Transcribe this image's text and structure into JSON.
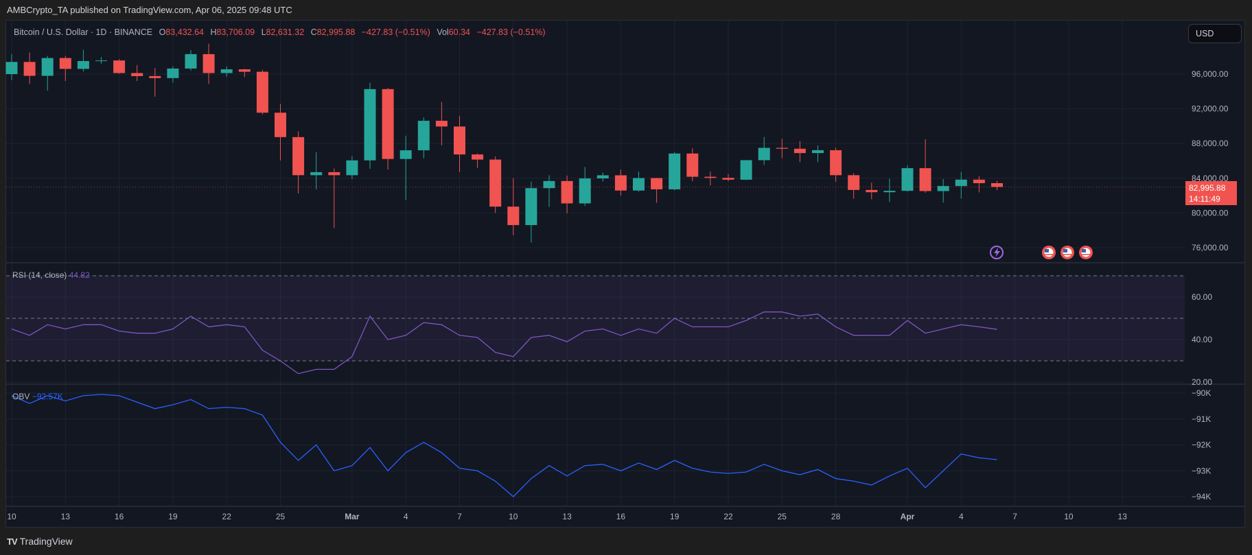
{
  "header": {
    "published": "AMBCrypto_TA published on TradingView.com, Apr 06, 2025 09:48 UTC"
  },
  "legend": {
    "symbol": "Bitcoin / U.S. Dollar · 1D · BINANCE",
    "o_label": "O",
    "o": "83,432.64",
    "h_label": "H",
    "h": "83,706.09",
    "l_label": "L",
    "l": "82,631.32",
    "c_label": "C",
    "c": "82,995.88",
    "change": "−427.83 (−0.51%)",
    "vol_label": "Vol",
    "vol": "60.34",
    "vol_change": "−427.83 (−0.51%)"
  },
  "currency_button": "USD",
  "last_price": {
    "price": "82,995.88",
    "countdown": "14:11:49"
  },
  "colors": {
    "up": "#26a69a",
    "down": "#f05350",
    "rsi": "#7e57c2",
    "obv": "#2962ff",
    "background": "#131722"
  },
  "footer": {
    "brand": "TradingView",
    "logo_mark": "TV"
  },
  "events": [
    "lightning-icon",
    "us-flag-icon",
    "us-flag-icon",
    "us-flag-icon"
  ],
  "chart_data": [
    {
      "type": "candlestick",
      "title": "Bitcoin / U.S. Dollar · 1D · BINANCE",
      "yticks": [
        "96,000.00",
        "92,000.00",
        "88,000.00",
        "84,000.00",
        "80,000.00",
        "76,000.00"
      ],
      "ylim": [
        74000,
        99500
      ],
      "xticks": [
        "10",
        "13",
        "16",
        "19",
        "22",
        "25",
        "Mar",
        "4",
        "7",
        "10",
        "13",
        "16",
        "19",
        "22",
        "25",
        "28",
        "Apr",
        "4",
        "7",
        "10",
        "13"
      ],
      "columns": [
        "date",
        "open",
        "high",
        "low",
        "close"
      ],
      "ohlc": [
        [
          "2025-02-10",
          96000,
          98300,
          95300,
          97400
        ],
        [
          "2025-02-11",
          97400,
          98500,
          94850,
          95800
        ],
        [
          "2025-02-12",
          95800,
          98100,
          94100,
          97850
        ],
        [
          "2025-02-13",
          97850,
          98100,
          95200,
          96600
        ],
        [
          "2025-02-14",
          96600,
          98800,
          96300,
          97500
        ],
        [
          "2025-02-15",
          97500,
          97970,
          97200,
          97570
        ],
        [
          "2025-02-16",
          97570,
          97730,
          96040,
          96120
        ],
        [
          "2025-02-17",
          96120,
          97040,
          95200,
          95770
        ],
        [
          "2025-02-18",
          95770,
          96700,
          93390,
          95540
        ],
        [
          "2025-02-19",
          95540,
          96900,
          95020,
          96640
        ],
        [
          "2025-02-20",
          96640,
          98770,
          96400,
          98300
        ],
        [
          "2025-02-21",
          98300,
          99500,
          94870,
          96120
        ],
        [
          "2025-02-22",
          96120,
          96890,
          95700,
          96550
        ],
        [
          "2025-02-23",
          96550,
          96620,
          95660,
          96270
        ],
        [
          "2025-02-24",
          96270,
          96500,
          91350,
          91550
        ],
        [
          "2025-02-25",
          91550,
          92570,
          86050,
          88740
        ],
        [
          "2025-02-26",
          88740,
          89390,
          82250,
          84350
        ],
        [
          "2025-02-27",
          84350,
          87000,
          82700,
          84700
        ],
        [
          "2025-02-28",
          84700,
          85120,
          78250,
          84350
        ],
        [
          "2025-03-01",
          84350,
          86550,
          83900,
          86060
        ],
        [
          "2025-03-02",
          86060,
          95000,
          85100,
          94270
        ],
        [
          "2025-03-03",
          94270,
          94420,
          85000,
          86220
        ],
        [
          "2025-03-04",
          86220,
          88900,
          81500,
          87220
        ],
        [
          "2025-03-05",
          87220,
          91000,
          86300,
          90620
        ],
        [
          "2025-03-06",
          90620,
          92800,
          87800,
          89960
        ],
        [
          "2025-03-07",
          89960,
          91200,
          84700,
          86740
        ],
        [
          "2025-03-08",
          86740,
          86850,
          85200,
          86150
        ],
        [
          "2025-03-09",
          86150,
          86500,
          80000,
          80730
        ],
        [
          "2025-03-10",
          80730,
          84000,
          77450,
          78600
        ],
        [
          "2025-03-11",
          78600,
          83600,
          76600,
          82860
        ],
        [
          "2025-03-12",
          82860,
          84350,
          80700,
          83680
        ],
        [
          "2025-03-13",
          83680,
          84300,
          79950,
          81100
        ],
        [
          "2025-03-14",
          81100,
          85300,
          80800,
          83980
        ],
        [
          "2025-03-15",
          83980,
          84670,
          83630,
          84340
        ],
        [
          "2025-03-16",
          84340,
          85000,
          82000,
          82580
        ],
        [
          "2025-03-17",
          82580,
          84750,
          82450,
          84020
        ],
        [
          "2025-03-18",
          84020,
          84050,
          81180,
          82720
        ],
        [
          "2025-03-19",
          82720,
          87000,
          82600,
          86850
        ],
        [
          "2025-03-20",
          86850,
          87450,
          83650,
          84170
        ],
        [
          "2025-03-21",
          84170,
          84780,
          83180,
          84040
        ],
        [
          "2025-03-22",
          84040,
          84500,
          83650,
          83830
        ],
        [
          "2025-03-23",
          83830,
          86100,
          83780,
          86080
        ],
        [
          "2025-03-24",
          86080,
          88750,
          85540,
          87500
        ],
        [
          "2025-03-25",
          87500,
          88550,
          86300,
          87400
        ],
        [
          "2025-03-26",
          87400,
          88290,
          85860,
          86900
        ],
        [
          "2025-03-27",
          86900,
          87780,
          85860,
          87230
        ],
        [
          "2025-03-28",
          87230,
          87520,
          83600,
          84350
        ],
        [
          "2025-03-29",
          84350,
          84570,
          81640,
          82650
        ],
        [
          "2025-03-30",
          82650,
          83500,
          81570,
          82390
        ],
        [
          "2025-03-31",
          82390,
          83950,
          81280,
          82550
        ],
        [
          "2025-04-01",
          82550,
          85500,
          82430,
          85160
        ],
        [
          "2025-04-02",
          85160,
          88500,
          82320,
          82520
        ],
        [
          "2025-04-03",
          82520,
          83900,
          81200,
          83100
        ],
        [
          "2025-04-04",
          83100,
          84720,
          81670,
          83840
        ],
        [
          "2025-04-05",
          83840,
          84230,
          82370,
          83430
        ],
        [
          "2025-04-06",
          83432.64,
          83706.09,
          82631.32,
          82995.88
        ]
      ]
    },
    {
      "type": "line",
      "title": "RSI (14, close)",
      "last_value": "44.82",
      "yticks": [
        "60.00",
        "40.00",
        "20.00"
      ],
      "bands": [
        70,
        50,
        30
      ],
      "values": [
        45,
        42,
        47,
        45,
        47,
        47,
        44,
        43,
        43,
        45,
        51,
        46,
        47,
        46,
        35,
        30,
        24,
        26,
        26,
        32,
        51,
        40,
        42,
        48,
        47,
        42,
        41,
        34,
        32,
        41,
        42,
        39,
        44,
        45,
        42,
        45,
        43,
        50,
        46,
        46,
        46,
        49,
        53,
        53,
        51,
        52,
        46,
        42,
        42,
        42,
        49,
        43,
        45,
        47,
        46,
        44.82
      ]
    },
    {
      "type": "line",
      "title": "OBV",
      "last_value": "−92.57K",
      "unit": "K",
      "yticks": [
        "−90K",
        "−91K",
        "−92K",
        "−93K",
        "−94K"
      ],
      "values": [
        -90.1,
        -90.4,
        -90.1,
        -90.3,
        -90.1,
        -90.05,
        -90.1,
        -90.35,
        -90.6,
        -90.45,
        -90.25,
        -90.6,
        -90.55,
        -90.6,
        -90.85,
        -91.9,
        -92.6,
        -92.0,
        -93.0,
        -92.8,
        -92.1,
        -93.0,
        -92.3,
        -91.9,
        -92.3,
        -92.9,
        -93.0,
        -93.4,
        -94.0,
        -93.3,
        -92.8,
        -93.2,
        -92.8,
        -92.75,
        -93.0,
        -92.7,
        -92.95,
        -92.6,
        -92.9,
        -93.05,
        -93.1,
        -93.05,
        -92.75,
        -93.0,
        -93.15,
        -92.95,
        -93.3,
        -93.4,
        -93.55,
        -93.2,
        -92.9,
        -93.65,
        -93.0,
        -92.35,
        -92.5,
        -92.57
      ]
    }
  ]
}
